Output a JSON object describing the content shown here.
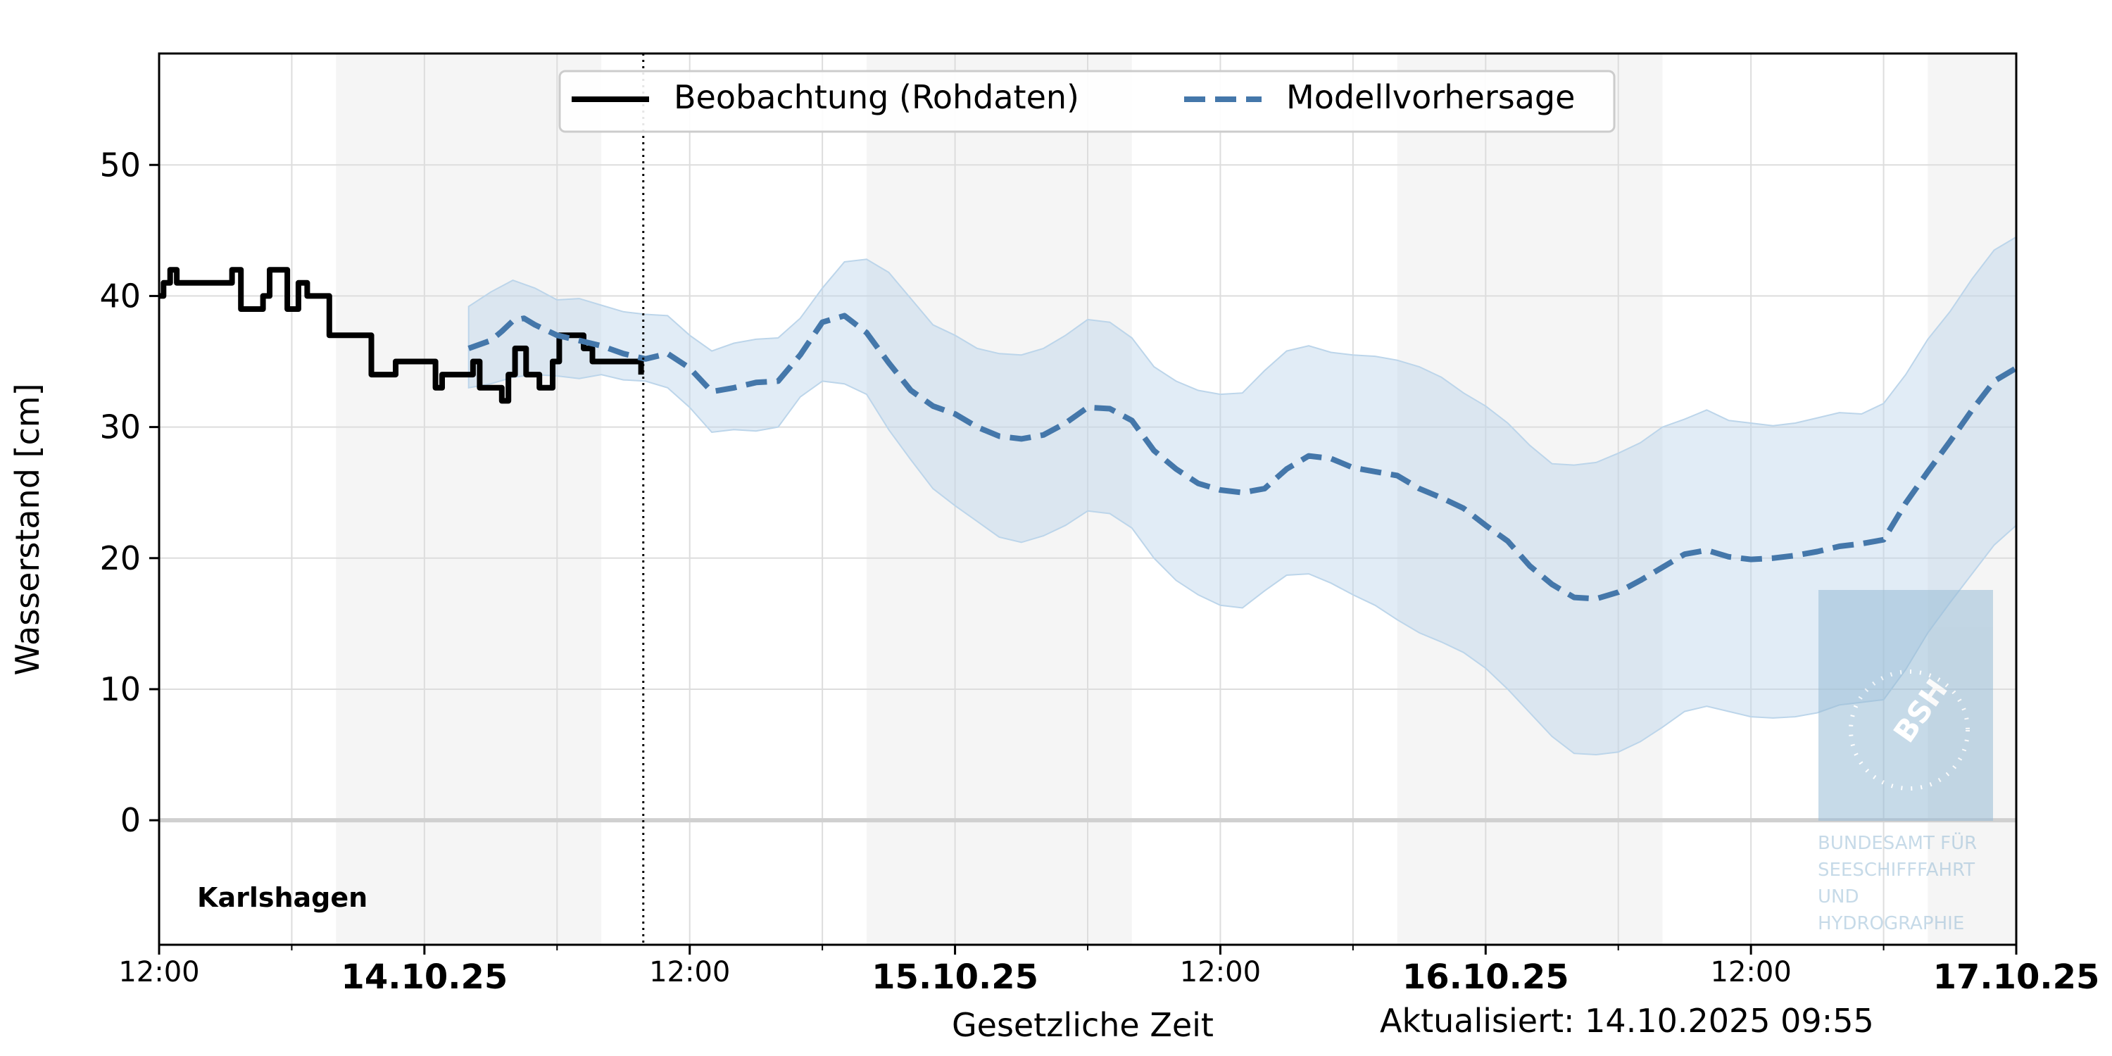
{
  "chart_data": {
    "type": "line",
    "xlabel": "Gesetzliche Zeit",
    "ylabel": "Wasserstand [cm]",
    "station": "Karlshagen",
    "updated": "Aktualisiert: 14.10.2025 09:55",
    "x_unit": "hours since 12:00 on 13.10.25",
    "xlim": [
      0,
      84
    ],
    "ylim": [
      -9.5,
      58.5
    ],
    "y_ticks": [
      0,
      10,
      20,
      30,
      40,
      50
    ],
    "x_ticks": [
      {
        "x": 0,
        "label": "12:00",
        "bold": false
      },
      {
        "x": 12,
        "label": "14.10.25",
        "bold": true
      },
      {
        "x": 24,
        "label": "12:00",
        "bold": false
      },
      {
        "x": 36,
        "label": "15.10.25",
        "bold": true
      },
      {
        "x": 48,
        "label": "12:00",
        "bold": false
      },
      {
        "x": 60,
        "label": "16.10.25",
        "bold": true
      },
      {
        "x": 72,
        "label": "12:00",
        "bold": false
      },
      {
        "x": 84,
        "label": "17.10.25",
        "bold": true
      }
    ],
    "minor_x_ticks": [
      6,
      18,
      30,
      42,
      54,
      66,
      78
    ],
    "night_bands": [
      [
        8,
        20
      ],
      [
        32,
        44
      ],
      [
        56,
        68
      ],
      [
        80,
        84
      ]
    ],
    "now_line_x": 21.9,
    "grid": true,
    "legend_position": "top-center",
    "colors": {
      "observation": "#000000",
      "forecast": "#4477aa",
      "band": "#bcd5ea",
      "night": "#f5f5f5"
    },
    "series": [
      {
        "name": "Beobachtung (Rohdaten)",
        "style": "solid",
        "points": [
          [
            0,
            40
          ],
          [
            0.2,
            40
          ],
          [
            0.2,
            41
          ],
          [
            0.5,
            41
          ],
          [
            0.5,
            42
          ],
          [
            0.8,
            42
          ],
          [
            0.8,
            41
          ],
          [
            3.3,
            41
          ],
          [
            3.3,
            42
          ],
          [
            3.7,
            42
          ],
          [
            3.7,
            39
          ],
          [
            4.7,
            39
          ],
          [
            4.7,
            40
          ],
          [
            5.0,
            40
          ],
          [
            5.0,
            42
          ],
          [
            5.8,
            42
          ],
          [
            5.8,
            39
          ],
          [
            6.3,
            39
          ],
          [
            6.3,
            41
          ],
          [
            6.7,
            41
          ],
          [
            6.7,
            40
          ],
          [
            7.7,
            40
          ],
          [
            7.7,
            37
          ],
          [
            9.6,
            37
          ],
          [
            9.6,
            34
          ],
          [
            10.7,
            34
          ],
          [
            10.7,
            35
          ],
          [
            12.5,
            35
          ],
          [
            12.5,
            33
          ],
          [
            12.8,
            33
          ],
          [
            12.8,
            34
          ],
          [
            14.2,
            34
          ],
          [
            14.2,
            35
          ],
          [
            14.5,
            35
          ],
          [
            14.5,
            33
          ],
          [
            15.5,
            33
          ],
          [
            15.5,
            32
          ],
          [
            15.8,
            32
          ],
          [
            15.8,
            34
          ],
          [
            16.1,
            34
          ],
          [
            16.1,
            36
          ],
          [
            16.6,
            36
          ],
          [
            16.6,
            34
          ],
          [
            17.2,
            34
          ],
          [
            17.2,
            33
          ],
          [
            17.8,
            33
          ],
          [
            17.8,
            35
          ],
          [
            18.1,
            35
          ],
          [
            18.1,
            37
          ],
          [
            19.2,
            37
          ],
          [
            19.2,
            36
          ],
          [
            19.6,
            36
          ],
          [
            19.6,
            35
          ],
          [
            21.8,
            35
          ],
          [
            21.8,
            34
          ]
        ]
      },
      {
        "name": "Modellvorhersage",
        "style": "dashed",
        "points": [
          [
            14,
            36
          ],
          [
            15,
            36.6
          ],
          [
            15.5,
            37.3
          ],
          [
            16,
            38.1
          ],
          [
            16.5,
            38.3
          ],
          [
            17,
            37.8
          ],
          [
            18,
            37
          ],
          [
            19,
            36.6
          ],
          [
            20,
            36.2
          ],
          [
            21,
            35.6
          ],
          [
            22,
            35.2
          ],
          [
            23,
            35.6
          ],
          [
            24,
            34.5
          ],
          [
            25,
            32.7
          ],
          [
            26,
            33
          ],
          [
            27,
            33.4
          ],
          [
            28,
            33.5
          ],
          [
            29,
            35.5
          ],
          [
            30,
            38
          ],
          [
            31,
            38.5
          ],
          [
            32,
            37.2
          ],
          [
            33,
            34.9
          ],
          [
            34,
            32.8
          ],
          [
            35,
            31.6
          ],
          [
            36,
            31
          ],
          [
            37,
            30
          ],
          [
            38,
            29.3
          ],
          [
            39,
            29.1
          ],
          [
            40,
            29.4
          ],
          [
            41,
            30.3
          ],
          [
            42,
            31.5
          ],
          [
            43,
            31.4
          ],
          [
            44,
            30.5
          ],
          [
            45,
            28.2
          ],
          [
            46,
            26.8
          ],
          [
            47,
            25.7
          ],
          [
            48,
            25.2
          ],
          [
            49,
            25
          ],
          [
            50,
            25.3
          ],
          [
            51,
            26.8
          ],
          [
            52,
            27.8
          ],
          [
            53,
            27.6
          ],
          [
            54,
            26.9
          ],
          [
            55,
            26.6
          ],
          [
            56,
            26.3
          ],
          [
            57,
            25.3
          ],
          [
            58,
            24.6
          ],
          [
            59,
            23.8
          ],
          [
            60,
            22.5
          ],
          [
            61,
            21.3
          ],
          [
            62,
            19.4
          ],
          [
            63,
            18
          ],
          [
            64,
            17
          ],
          [
            65,
            16.9
          ],
          [
            66,
            17.4
          ],
          [
            67,
            18.3
          ],
          [
            68,
            19.3
          ],
          [
            69,
            20.3
          ],
          [
            70,
            20.6
          ],
          [
            71,
            20.1
          ],
          [
            72,
            19.9
          ],
          [
            73,
            20
          ],
          [
            74,
            20.2
          ],
          [
            75,
            20.5
          ],
          [
            76,
            20.9
          ],
          [
            77,
            21.1
          ],
          [
            78,
            21.4
          ],
          [
            79,
            24.2
          ],
          [
            80,
            26.6
          ],
          [
            81,
            28.9
          ],
          [
            82,
            31.3
          ],
          [
            83,
            33.5
          ],
          [
            84,
            34.5
          ]
        ]
      }
    ],
    "uncertainty_band": {
      "x": [
        14,
        15,
        16,
        17,
        18,
        19,
        20,
        21,
        22,
        23,
        24,
        25,
        26,
        27,
        28,
        29,
        30,
        31,
        32,
        33,
        34,
        35,
        36,
        37,
        38,
        39,
        40,
        41,
        42,
        43,
        44,
        45,
        46,
        47,
        48,
        49,
        50,
        51,
        52,
        53,
        54,
        55,
        56,
        57,
        58,
        59,
        60,
        61,
        62,
        63,
        64,
        65,
        66,
        67,
        68,
        69,
        70,
        71,
        72,
        73,
        74,
        75,
        76,
        77,
        78,
        79,
        80,
        81,
        82,
        83,
        84
      ],
      "lower": [
        33,
        33.3,
        33.8,
        34,
        33.9,
        33.7,
        34,
        33.6,
        33.5,
        33,
        31.5,
        29.6,
        29.8,
        29.7,
        30,
        32.3,
        33.5,
        33.3,
        32.5,
        29.8,
        27.5,
        25.3,
        24,
        22.8,
        21.6,
        21.2,
        21.7,
        22.5,
        23.6,
        23.4,
        22.3,
        20,
        18.3,
        17.2,
        16.4,
        16.2,
        17.5,
        18.7,
        18.8,
        18.1,
        17.2,
        16.4,
        15.3,
        14.3,
        13.6,
        12.8,
        11.6,
        10,
        8.2,
        6.4,
        5.1,
        5,
        5.2,
        6,
        7.1,
        8.3,
        8.7,
        8.3,
        7.9,
        7.8,
        7.9,
        8.2,
        8.8,
        9,
        9.2,
        11.5,
        14.3,
        16.6,
        18.8,
        21,
        22.5
      ],
      "upper": [
        39.2,
        40.3,
        41.2,
        40.6,
        39.7,
        39.8,
        39.3,
        38.8,
        38.6,
        38.5,
        37,
        35.8,
        36.4,
        36.7,
        36.8,
        38.3,
        40.6,
        42.6,
        42.8,
        41.8,
        39.8,
        37.8,
        37,
        36,
        35.6,
        35.5,
        36,
        37,
        38.2,
        38,
        36.8,
        34.6,
        33.5,
        32.8,
        32.5,
        32.6,
        34.3,
        35.8,
        36.2,
        35.7,
        35.5,
        35.4,
        35.1,
        34.6,
        33.8,
        32.6,
        31.6,
        30.3,
        28.6,
        27.2,
        27.1,
        27.3,
        28,
        28.8,
        30,
        30.6,
        31.3,
        30.5,
        30.3,
        30.1,
        30.3,
        30.7,
        31.1,
        31,
        31.8,
        34,
        36.7,
        38.8,
        41.3,
        43.5,
        44.5
      ]
    }
  },
  "logo": {
    "abbreviation": "BSH",
    "text_lines": [
      "BUNDESAMT FÜR",
      "SEESCHIFFFAHRT",
      "UND",
      "HYDROGRAPHIE"
    ]
  }
}
